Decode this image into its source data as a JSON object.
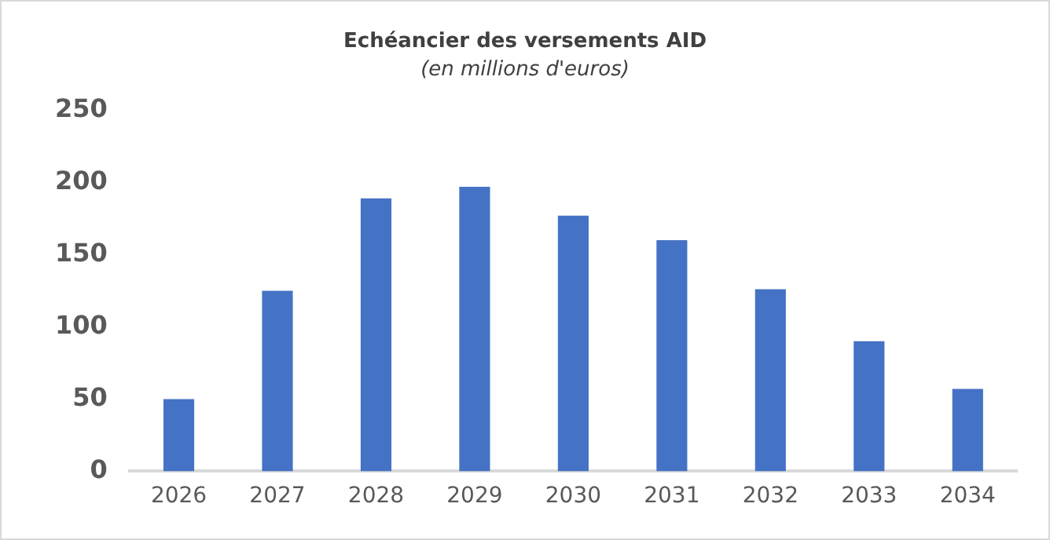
{
  "chart_data": {
    "type": "bar",
    "title": "Echéancier des versements AID",
    "subtitle": "(en millions d'euros)",
    "categories": [
      "2026",
      "2027",
      "2028",
      "2029",
      "2030",
      "2031",
      "2032",
      "2033",
      "2034"
    ],
    "values": [
      50,
      125,
      189,
      197,
      177,
      160,
      126,
      90,
      57
    ],
    "color": "#4472c4",
    "ylim": [
      0,
      250
    ],
    "yticks": [
      0,
      50,
      100,
      150,
      200,
      250
    ],
    "grid": false,
    "legend": false
  }
}
